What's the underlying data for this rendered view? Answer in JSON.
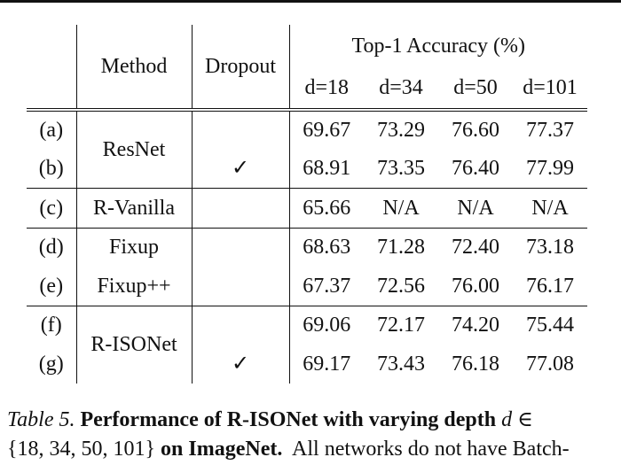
{
  "table": {
    "headers": {
      "method": "Method",
      "dropout": "Dropout",
      "top1": "Top-1 Accuracy (%)",
      "depths": [
        "d=18",
        "d=34",
        "d=50",
        "d=101"
      ]
    },
    "rows": [
      {
        "label": "(a)",
        "method": "ResNet",
        "dropout": "",
        "values": [
          "69.67",
          "73.29",
          "76.60",
          "77.37"
        ]
      },
      {
        "label": "(b)",
        "method": "ResNet",
        "dropout": "✓",
        "values": [
          "68.91",
          "73.35",
          "76.40",
          "77.99"
        ]
      },
      {
        "label": "(c)",
        "method": "R-Vanilla",
        "dropout": "",
        "values": [
          "65.66",
          "N/A",
          "N/A",
          "N/A"
        ]
      },
      {
        "label": "(d)",
        "method": "Fixup",
        "dropout": "",
        "values": [
          "68.63",
          "71.28",
          "72.40",
          "73.18"
        ]
      },
      {
        "label": "(e)",
        "method": "Fixup++",
        "dropout": "",
        "values": [
          "67.37",
          "72.56",
          "76.00",
          "76.17"
        ]
      },
      {
        "label": "(f)",
        "method": "R-ISONet",
        "dropout": "",
        "values": [
          "69.06",
          "72.17",
          "74.20",
          "75.44"
        ]
      },
      {
        "label": "(g)",
        "method": "R-ISONet",
        "dropout": "✓",
        "values": [
          "69.17",
          "73.43",
          "76.18",
          "77.08"
        ]
      }
    ]
  },
  "caption": {
    "label": "Table 5.",
    "bold": "Performance of R-ISONet with varying depth",
    "var": "d",
    "elem": "∈",
    "set": "{18, 34, 50, 101}",
    "bold2": "on ImageNet.",
    "rest": "All networks do not have Batch-"
  }
}
